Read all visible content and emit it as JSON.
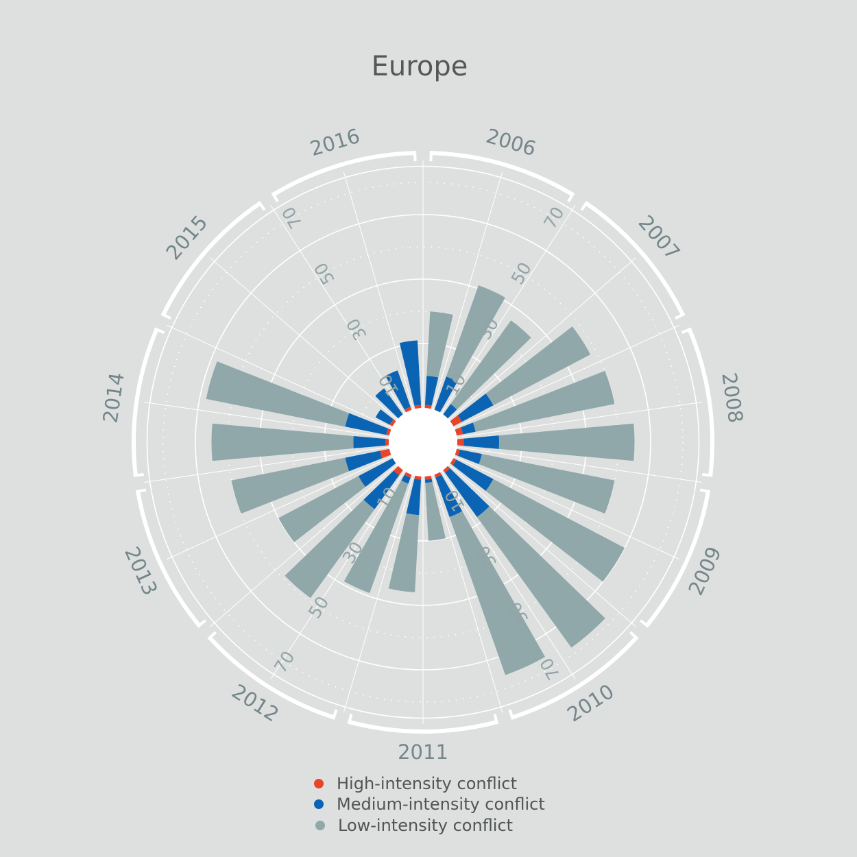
{
  "chart_data": {
    "type": "bar",
    "subtype": "radial-stacked-bar",
    "title": "Europe",
    "years": [
      "2006",
      "2007",
      "2008",
      "2009",
      "2010",
      "2011",
      "2012",
      "2013",
      "2014",
      "2015",
      "2016"
    ],
    "year_order": "clockwise from top",
    "bars_per_year": 2,
    "radial_ticks": [
      10,
      30,
      50,
      70
    ],
    "radial_max": 70,
    "grid": true,
    "legend_position": "bottom-center",
    "series": [
      {
        "name": "High-intensity conflict",
        "color": "#e8442a",
        "values": [
          1,
          0,
          0,
          3,
          2,
          2,
          1,
          1,
          1,
          1,
          1,
          1,
          1,
          2,
          0,
          3,
          1,
          1,
          1,
          0,
          1,
          1
        ]
      },
      {
        "name": "Medium-intensity conflict",
        "color": "#0b64b3",
        "values": [
          9,
          11,
          4,
          11,
          4,
          11,
          7,
          13,
          17,
          13,
          1,
          11,
          2,
          13,
          12,
          11,
          10,
          13,
          5,
          10,
          12,
          20
        ]
      },
      {
        "name": "Low-intensity conflict",
        "color": "#90a8aa",
        "values": [
          20,
          30,
          32,
          34,
          44,
          42,
          42,
          46,
          50,
          52,
          18,
          24,
          36,
          34,
          28,
          36,
          44,
          44,
          0,
          0,
          0,
          0
        ]
      }
    ]
  }
}
